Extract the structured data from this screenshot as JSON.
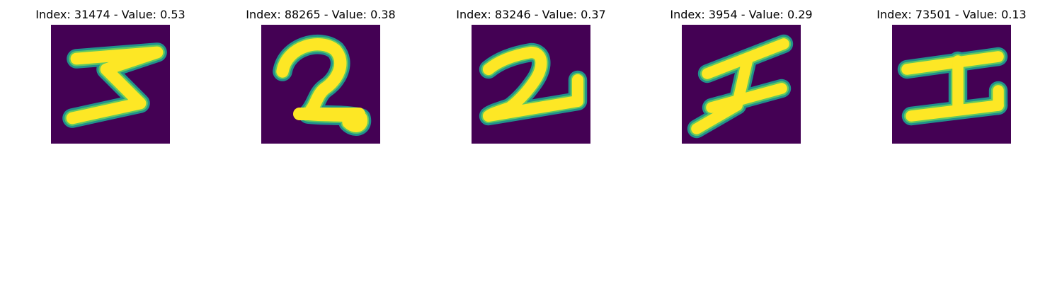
{
  "colors": {
    "background": "#440154",
    "stroke_edge": "#21918c",
    "stroke_mid": "#5ec962",
    "stroke_core": "#fde725"
  },
  "panels": [
    {
      "title": "Index: 31474 - Value: 0.53",
      "glyph": "digit-5"
    },
    {
      "title": "Index: 88265 - Value: 0.38",
      "glyph": "digit-2"
    },
    {
      "title": "Index: 83246 - Value: 0.37",
      "glyph": "digit-2"
    },
    {
      "title": "Index: 3954 - Value: 0.29",
      "glyph": "letter-I"
    },
    {
      "title": "Index: 73501 - Value: 0.13",
      "glyph": "letter-I"
    }
  ]
}
